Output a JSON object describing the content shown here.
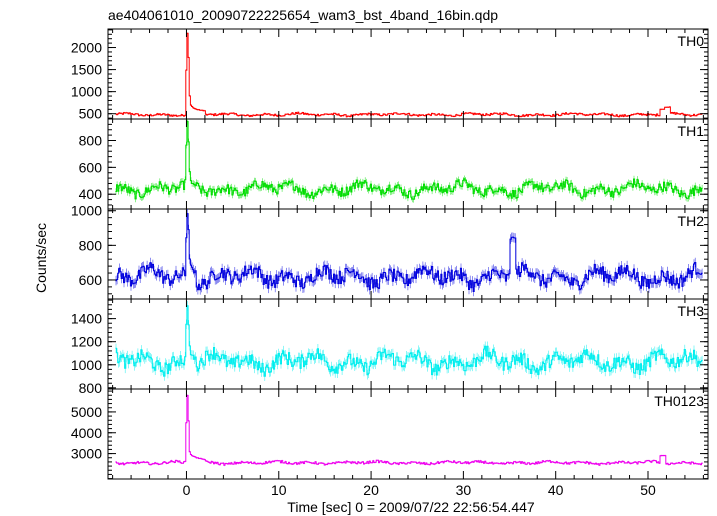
{
  "chart_data": {
    "type": "line",
    "title": "ae404061010_20090722225654_wam3_bst_4band_16bin.qdp",
    "xlabel": "Time [sec] 0 = 2009/07/22 22:56:54.447",
    "ylabel": "Counts/sec",
    "xlim": [
      -8.5,
      56.5
    ],
    "x_ticks": [
      0,
      10,
      20,
      30,
      40,
      50
    ],
    "grid": false,
    "error_bars": true,
    "panels": [
      {
        "name": "TH0",
        "color": "#ff0000",
        "ylim": [
          380,
          2420
        ],
        "y_ticks": [
          500,
          1000,
          1500,
          2000
        ],
        "baseline": 480,
        "noise": 30,
        "x_peak": [
          -0.2,
          -0.1,
          0.0,
          0.1,
          0.2,
          0.3,
          0.4,
          0.6,
          0.8,
          1.0,
          1.5,
          2.0
        ],
        "y_peak": [
          540,
          1200,
          2350,
          2300,
          1600,
          900,
          700,
          650,
          620,
          600,
          580,
          560
        ],
        "x_bump": [
          51.5,
          52.0
        ],
        "y_bump": [
          600,
          650
        ]
      },
      {
        "name": "TH1",
        "color": "#00dd00",
        "ylim": [
          290,
          960
        ],
        "y_ticks": [
          400,
          600,
          800
        ],
        "baseline": 440,
        "noise": 45,
        "x_peak": [
          -0.2,
          -0.1,
          0.0,
          0.1,
          0.2,
          0.3,
          0.4,
          0.6,
          0.8,
          1.0
        ],
        "y_peak": [
          460,
          700,
          950,
          920,
          750,
          560,
          500,
          480,
          470,
          460
        ],
        "x_bump": [],
        "y_bump": []
      },
      {
        "name": "TH2",
        "color": "#0000dd",
        "ylim": [
          490,
          1010
        ],
        "y_ticks": [
          600,
          800,
          1000
        ],
        "baseline": 620,
        "noise": 50,
        "x_peak": [
          -0.2,
          -0.1,
          0.0,
          0.1,
          0.2,
          0.3,
          0.4,
          0.6,
          0.8,
          1.0
        ],
        "y_peak": [
          640,
          800,
          1000,
          980,
          850,
          720,
          680,
          660,
          650,
          640
        ],
        "x_bump": [
          35.3
        ],
        "y_bump": [
          840
        ]
      },
      {
        "name": "TH3",
        "color": "#00eeee",
        "ylim": [
          790,
          1570
        ],
        "y_ticks": [
          800,
          1000,
          1200,
          1400
        ],
        "baseline": 1030,
        "noise": 75,
        "x_peak": [
          -0.2,
          -0.1,
          0.0,
          0.1,
          0.2,
          0.3,
          0.4,
          0.6,
          0.8,
          1.0
        ],
        "y_peak": [
          1060,
          1300,
          1550,
          1500,
          1300,
          1150,
          1100,
          1080,
          1060,
          1050
        ],
        "x_bump": [],
        "y_bump": []
      },
      {
        "name": "TH0123",
        "color": "#ee00ee",
        "ylim": [
          1780,
          6100
        ],
        "y_ticks": [
          3000,
          4000,
          5000
        ],
        "baseline": 2560,
        "noise": 70,
        "x_peak": [
          -0.2,
          -0.1,
          0.0,
          0.1,
          0.2,
          0.3,
          0.4,
          0.6,
          0.8,
          1.0,
          1.5,
          2.0
        ],
        "y_peak": [
          2700,
          4000,
          5900,
          5700,
          4200,
          3100,
          2950,
          2900,
          2850,
          2800,
          2750,
          2700
        ],
        "x_bump": [
          51.5
        ],
        "y_bump": [
          2900
        ]
      }
    ]
  }
}
